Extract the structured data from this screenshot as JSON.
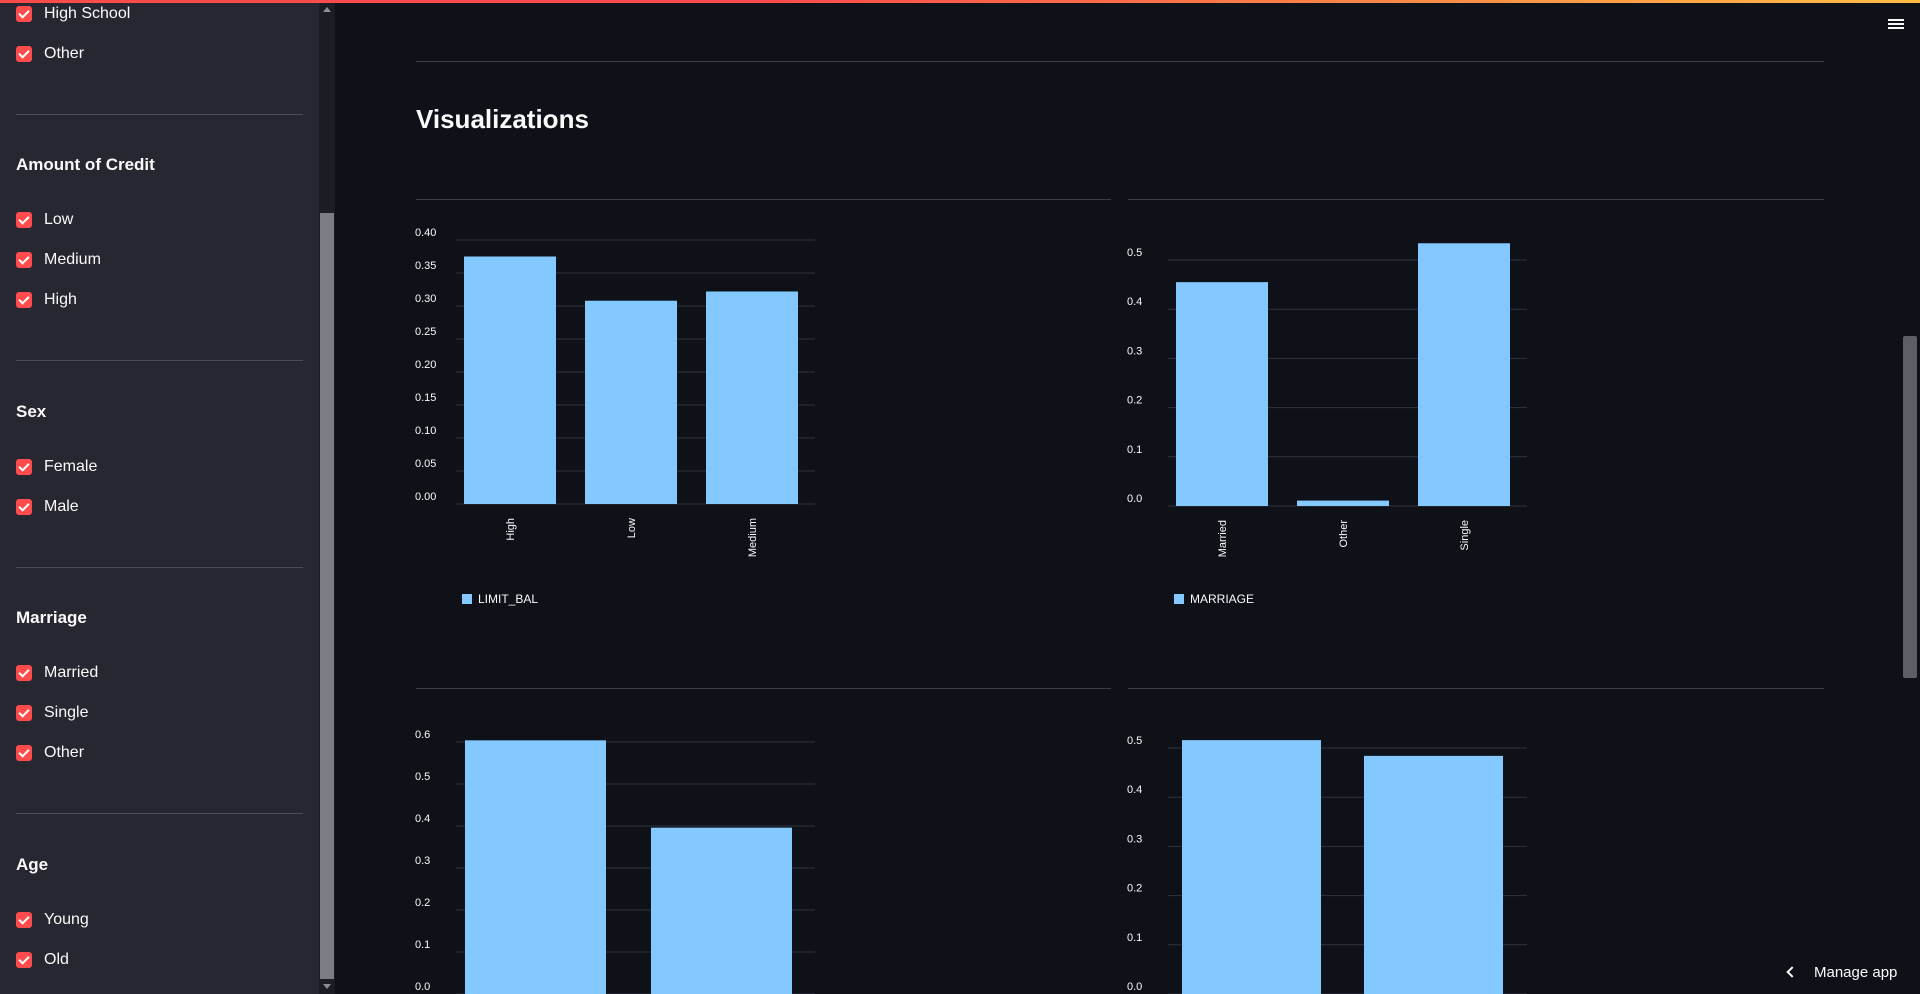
{
  "sidebar": {
    "groups": [
      {
        "heading": "",
        "options": [
          "High School",
          "Other"
        ]
      },
      {
        "heading": "Amount of Credit",
        "options": [
          "Low",
          "Medium",
          "High"
        ]
      },
      {
        "heading": "Sex",
        "options": [
          "Female",
          "Male"
        ]
      },
      {
        "heading": "Marriage",
        "options": [
          "Married",
          "Single",
          "Other"
        ]
      },
      {
        "heading": "Age",
        "options": [
          "Young",
          "Old"
        ]
      }
    ]
  },
  "main": {
    "section_title": "Visualizations",
    "manage_app_label": "Manage app"
  },
  "colors": {
    "accent": "#ff4b4b",
    "bar": "#83c9ff",
    "background": "#0e1117",
    "sidebar": "#262730"
  },
  "chart_data": [
    {
      "type": "bar",
      "categories": [
        "High",
        "Low",
        "Medium"
      ],
      "series": [
        {
          "name": "LIMIT_BAL",
          "values": [
            0.375,
            0.308,
            0.322
          ]
        }
      ],
      "ylim": [
        0,
        0.4
      ],
      "yticks": [
        "0.00",
        "0.05",
        "0.10",
        "0.15",
        "0.20",
        "0.25",
        "0.30",
        "0.35",
        "0.40"
      ],
      "legend": "bottom-left",
      "grid": true
    },
    {
      "type": "bar",
      "categories": [
        "Married",
        "Other",
        "Single"
      ],
      "series": [
        {
          "name": "MARRIAGE",
          "values": [
            0.455,
            0.011,
            0.534
          ]
        }
      ],
      "ylim": [
        0,
        0.5
      ],
      "yticks": [
        "0.0",
        "0.1",
        "0.2",
        "0.3",
        "0.4",
        "0.5"
      ],
      "legend": "bottom-left",
      "grid": true
    },
    {
      "type": "bar",
      "categories": [
        "",
        ""
      ],
      "series": [
        {
          "name": "",
          "values": [
            0.604,
            0.396
          ]
        }
      ],
      "ylim": [
        0,
        0.6
      ],
      "yticks": [
        "0.0",
        "0.1",
        "0.2",
        "0.3",
        "0.4",
        "0.5",
        "0.6"
      ],
      "grid": true
    },
    {
      "type": "bar",
      "categories": [
        "",
        ""
      ],
      "series": [
        {
          "name": "",
          "values": [
            0.516,
            0.484
          ]
        }
      ],
      "ylim": [
        0,
        0.5
      ],
      "yticks": [
        "0.0",
        "0.1",
        "0.2",
        "0.3",
        "0.4",
        "0.5"
      ],
      "grid": true
    }
  ]
}
